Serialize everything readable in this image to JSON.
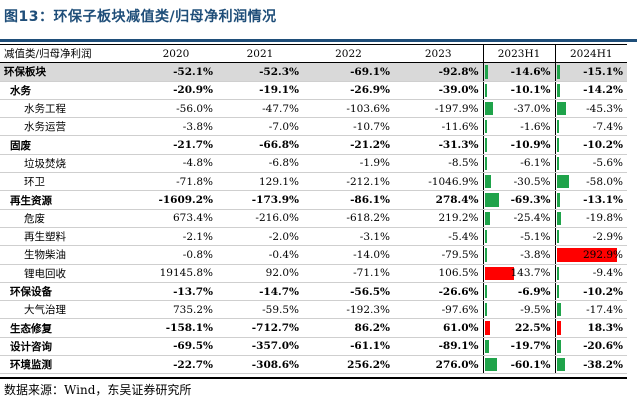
{
  "title": "图13：环保子板块减值类/归母净利润情况",
  "headers": [
    "减值类/归母净利润",
    "2020",
    "2021",
    "2022",
    "2023",
    "2023H1",
    "2024H1"
  ],
  "rows": [
    {
      "name": "环保板块",
      "level": 0,
      "kind": "group",
      "values": [
        "-52.1%",
        "-52.3%",
        "-69.1%",
        "-92.8%",
        "-14.6%",
        "-15.1%"
      ],
      "h1_2023": -14.6,
      "h1_2024": -15.1
    },
    {
      "name": "水务",
      "level": 1,
      "kind": "sector",
      "values": [
        "-20.9%",
        "-19.1%",
        "-26.9%",
        "-39.0%",
        "-10.1%",
        "-14.2%"
      ],
      "h1_2023": -10.1,
      "h1_2024": -14.2
    },
    {
      "name": "水务工程",
      "level": 2,
      "kind": "sub",
      "values": [
        "-56.0%",
        "-47.7%",
        "-103.6%",
        "-197.9%",
        "-37.0%",
        "-45.3%"
      ],
      "h1_2023": -37.0,
      "h1_2024": -45.3
    },
    {
      "name": "水务运营",
      "level": 2,
      "kind": "sub",
      "values": [
        "-3.8%",
        "-7.0%",
        "-10.7%",
        "-11.6%",
        "-1.6%",
        "-7.4%"
      ],
      "h1_2023": -1.6,
      "h1_2024": -7.4
    },
    {
      "name": "固废",
      "level": 1,
      "kind": "sector",
      "values": [
        "-21.7%",
        "-66.8%",
        "-21.2%",
        "-31.3%",
        "-10.9%",
        "-10.2%"
      ],
      "h1_2023": -10.9,
      "h1_2024": -10.2
    },
    {
      "name": "垃圾焚烧",
      "level": 2,
      "kind": "sub",
      "values": [
        "-4.8%",
        "-6.8%",
        "-1.9%",
        "-8.5%",
        "-6.1%",
        "-5.6%"
      ],
      "h1_2023": -6.1,
      "h1_2024": -5.6
    },
    {
      "name": "环卫",
      "level": 2,
      "kind": "sub",
      "values": [
        "-71.8%",
        "129.1%",
        "-212.1%",
        "-1046.9%",
        "-30.5%",
        "-58.0%"
      ],
      "h1_2023": -30.5,
      "h1_2024": -58.0
    },
    {
      "name": "再生资源",
      "level": 1,
      "kind": "sector",
      "values": [
        "-1609.2%",
        "-173.9%",
        "-86.1%",
        "278.4%",
        "-69.3%",
        "-13.1%"
      ],
      "h1_2023": -69.3,
      "h1_2024": -13.1
    },
    {
      "name": "危废",
      "level": 2,
      "kind": "sub",
      "values": [
        "673.4%",
        "-216.0%",
        "-618.2%",
        "219.2%",
        "-25.4%",
        "-19.8%"
      ],
      "h1_2023": -25.4,
      "h1_2024": -19.8
    },
    {
      "name": "再生塑料",
      "level": 2,
      "kind": "sub",
      "values": [
        "-2.1%",
        "-2.0%",
        "-3.1%",
        "-5.4%",
        "-5.1%",
        "-2.9%"
      ],
      "h1_2023": -5.1,
      "h1_2024": -2.9
    },
    {
      "name": "生物柴油",
      "level": 2,
      "kind": "sub",
      "values": [
        "-0.8%",
        "-0.4%",
        "-14.0%",
        "-79.5%",
        "-3.8%",
        "292.9%"
      ],
      "h1_2023": -3.8,
      "h1_2024": 292.9
    },
    {
      "name": "锂电回收",
      "level": 2,
      "kind": "sub",
      "values": [
        "19145.8%",
        "92.0%",
        "-71.1%",
        "106.5%",
        "143.7%",
        "-9.4%"
      ],
      "h1_2023": 143.7,
      "h1_2024": -9.4
    },
    {
      "name": "环保设备",
      "level": 1,
      "kind": "sector",
      "values": [
        "-13.7%",
        "-14.7%",
        "-56.5%",
        "-26.6%",
        "-6.9%",
        "-10.2%"
      ],
      "h1_2023": -6.9,
      "h1_2024": -10.2
    },
    {
      "name": "大气治理",
      "level": 2,
      "kind": "sub",
      "values": [
        "735.2%",
        "-59.5%",
        "-192.3%",
        "-97.6%",
        "-9.5%",
        "-17.4%"
      ],
      "h1_2023": -9.5,
      "h1_2024": -17.4
    },
    {
      "name": "生态修复",
      "level": 1,
      "kind": "sector",
      "values": [
        "-158.1%",
        "-712.7%",
        "86.2%",
        "61.0%",
        "22.5%",
        "18.3%"
      ],
      "h1_2023": 22.5,
      "h1_2024": 18.3
    },
    {
      "name": "设计咨询",
      "level": 1,
      "kind": "sector",
      "values": [
        "-69.5%",
        "-357.0%",
        "-61.1%",
        "-89.1%",
        "-19.7%",
        "-20.6%"
      ],
      "h1_2023": -19.7,
      "h1_2024": -20.6
    },
    {
      "name": "环境监测",
      "level": 1,
      "kind": "sector",
      "values": [
        "-22.7%",
        "-308.6%",
        "256.2%",
        "276.0%",
        "-60.1%",
        "-38.2%"
      ],
      "h1_2023": -60.1,
      "h1_2024": -38.2
    }
  ],
  "source": "数据来源：Wind，东吴证券研究所",
  "colors": {
    "title": "#1f4e79",
    "positive_bar": "#ff0000",
    "negative_bar": "#1fa34a",
    "group_bg": "#d9d9d9"
  }
}
